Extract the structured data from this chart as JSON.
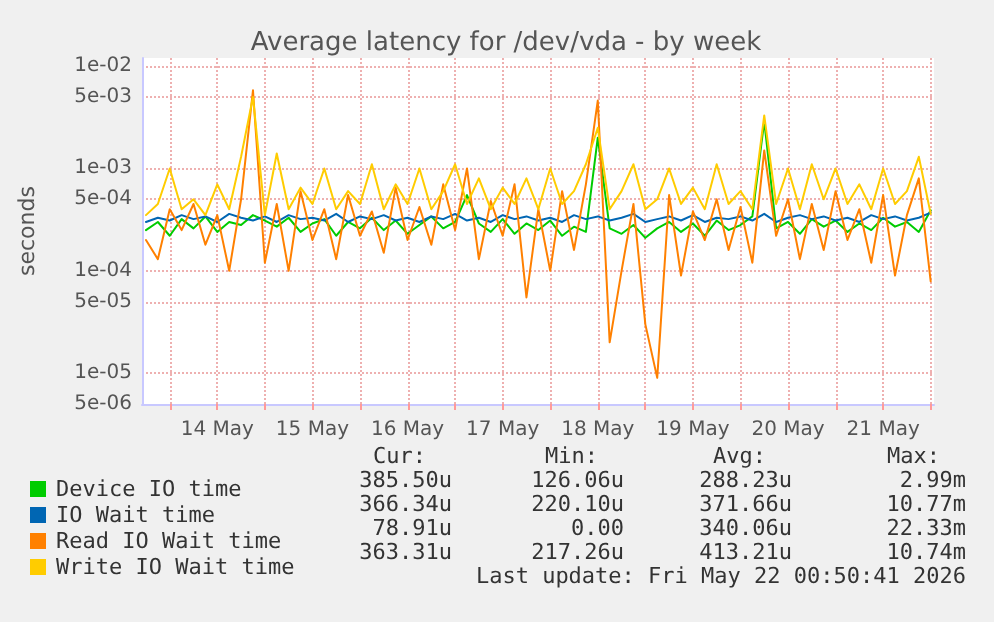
{
  "chart_data": {
    "type": "line",
    "title": "Average latency for /dev/vda - by week",
    "ylabel": "seconds",
    "log": "y",
    "grid": true,
    "legend": "bottom",
    "marker": "none",
    "line_style": "solid",
    "x": [
      "2026-05-13T18:00",
      "2026-05-13T21:00",
      "2026-05-14T00:00",
      "2026-05-14T03:00",
      "2026-05-14T06:00",
      "2026-05-14T09:00",
      "2026-05-14T12:00",
      "2026-05-14T15:00",
      "2026-05-14T18:00",
      "2026-05-14T21:00",
      "2026-05-15T00:00",
      "2026-05-15T03:00",
      "2026-05-15T06:00",
      "2026-05-15T09:00",
      "2026-05-15T12:00",
      "2026-05-15T15:00",
      "2026-05-15T18:00",
      "2026-05-15T21:00",
      "2026-05-16T00:00",
      "2026-05-16T03:00",
      "2026-05-16T06:00",
      "2026-05-16T09:00",
      "2026-05-16T12:00",
      "2026-05-16T15:00",
      "2026-05-16T18:00",
      "2026-05-16T21:00",
      "2026-05-17T00:00",
      "2026-05-17T03:00",
      "2026-05-17T06:00",
      "2026-05-17T09:00",
      "2026-05-17T12:00",
      "2026-05-17T15:00",
      "2026-05-17T18:00",
      "2026-05-17T21:00",
      "2026-05-18T00:00",
      "2026-05-18T03:00",
      "2026-05-18T06:00",
      "2026-05-18T09:00",
      "2026-05-18T12:00",
      "2026-05-18T15:00",
      "2026-05-18T18:00",
      "2026-05-18T21:00",
      "2026-05-19T00:00",
      "2026-05-19T03:00",
      "2026-05-19T06:00",
      "2026-05-19T09:00",
      "2026-05-19T12:00",
      "2026-05-19T15:00",
      "2026-05-19T18:00",
      "2026-05-19T21:00",
      "2026-05-20T00:00",
      "2026-05-20T03:00",
      "2026-05-20T06:00",
      "2026-05-20T09:00",
      "2026-05-20T12:00",
      "2026-05-20T15:00",
      "2026-05-20T18:00",
      "2026-05-20T21:00",
      "2026-05-21T00:00",
      "2026-05-21T03:00",
      "2026-05-21T06:00",
      "2026-05-21T09:00",
      "2026-05-21T12:00",
      "2026-05-21T15:00",
      "2026-05-21T18:00",
      "2026-05-21T21:00",
      "2026-05-22T00:00"
    ],
    "xlim": [
      "2026-05-13T17:00",
      "2026-05-22T00:50"
    ],
    "xticks": [
      {
        "value": "2026-05-14T00:00",
        "label": null
      },
      {
        "value": "2026-05-14T12:00",
        "label": "14 May"
      },
      {
        "value": "2026-05-15T00:00",
        "label": null
      },
      {
        "value": "2026-05-15T12:00",
        "label": "15 May"
      },
      {
        "value": "2026-05-16T00:00",
        "label": null
      },
      {
        "value": "2026-05-16T12:00",
        "label": "16 May"
      },
      {
        "value": "2026-05-17T00:00",
        "label": null
      },
      {
        "value": "2026-05-17T12:00",
        "label": "17 May"
      },
      {
        "value": "2026-05-18T00:00",
        "label": null
      },
      {
        "value": "2026-05-18T12:00",
        "label": "18 May"
      },
      {
        "value": "2026-05-19T00:00",
        "label": null
      },
      {
        "value": "2026-05-19T12:00",
        "label": "19 May"
      },
      {
        "value": "2026-05-20T00:00",
        "label": null
      },
      {
        "value": "2026-05-20T12:00",
        "label": "20 May"
      },
      {
        "value": "2026-05-21T00:00",
        "label": null
      },
      {
        "value": "2026-05-21T12:00",
        "label": "21 May"
      },
      {
        "value": "2026-05-22T00:00",
        "label": null
      }
    ],
    "ylim": [
      5e-06,
      0.012
    ],
    "yticks": [
      {
        "value": 5e-06,
        "label": "5e-06"
      },
      {
        "value": 1e-05,
        "label": "1e-05"
      },
      {
        "value": 5e-05,
        "label": "5e-05"
      },
      {
        "value": 0.0001,
        "label": "1e-04"
      },
      {
        "value": 0.0005,
        "label": "5e-04"
      },
      {
        "value": 0.001,
        "label": "1e-03"
      },
      {
        "value": 0.005,
        "label": "5e-03"
      },
      {
        "value": 0.01,
        "label": "1e-02"
      }
    ],
    "series": [
      {
        "name": "Device IO time",
        "color": "#00cc00",
        "values": [
          0.00025,
          0.0003,
          0.00022,
          0.00032,
          0.00026,
          0.00034,
          0.00024,
          0.0003,
          0.00028,
          0.00035,
          0.00031,
          0.00027,
          0.00033,
          0.00024,
          0.00029,
          0.00032,
          0.00022,
          0.0003,
          0.00026,
          0.00033,
          0.00025,
          0.00031,
          0.00023,
          0.00028,
          0.00034,
          0.00026,
          0.0003,
          0.00055,
          0.00029,
          0.00024,
          0.00032,
          0.00023,
          0.00029,
          0.00025,
          0.00031,
          0.00022,
          0.00027,
          0.00024,
          0.002,
          0.00026,
          0.00023,
          0.00028,
          0.00021,
          0.00026,
          0.0003,
          0.00024,
          0.00029,
          0.00022,
          0.00031,
          0.00025,
          0.00028,
          0.00034,
          0.0029,
          0.00026,
          0.0003,
          0.00023,
          0.00032,
          0.00027,
          0.00031,
          0.00024,
          0.00029,
          0.00025,
          0.00033,
          0.00027,
          0.0003,
          0.00024,
          0.00039
        ]
      },
      {
        "name": "IO Wait time",
        "color": "#0066b3",
        "values": [
          0.0003,
          0.00033,
          0.00031,
          0.00035,
          0.00032,
          0.00034,
          0.0003,
          0.00036,
          0.00033,
          0.00031,
          0.00034,
          0.0003,
          0.00035,
          0.00032,
          0.00033,
          0.00031,
          0.00036,
          0.0003,
          0.00034,
          0.00032,
          0.00035,
          0.00031,
          0.00033,
          0.0003,
          0.00034,
          0.00032,
          0.00036,
          0.00031,
          0.00033,
          0.0003,
          0.00035,
          0.00032,
          0.00034,
          0.00031,
          0.00033,
          0.0003,
          0.00035,
          0.00032,
          0.00034,
          0.00031,
          0.00033,
          0.00036,
          0.0003,
          0.00032,
          0.00034,
          0.00031,
          0.00035,
          0.0003,
          0.00033,
          0.00032,
          0.00034,
          0.00031,
          0.00036,
          0.0003,
          0.00033,
          0.00035,
          0.00032,
          0.00034,
          0.00031,
          0.00033,
          0.0003,
          0.00035,
          0.00032,
          0.00034,
          0.00031,
          0.00033,
          0.00037
        ]
      },
      {
        "name": "Read IO Wait time",
        "color": "#ff8000",
        "values": [
          0.0002,
          0.00013,
          0.0004,
          0.00025,
          0.00045,
          0.00018,
          0.00035,
          0.0001,
          0.0005,
          0.0058,
          0.00012,
          0.00045,
          0.0001,
          0.0006,
          0.0002,
          0.0004,
          0.00013,
          0.00055,
          0.00022,
          0.00038,
          0.00015,
          0.00065,
          0.0002,
          0.00042,
          0.00018,
          0.0007,
          0.00025,
          0.001,
          0.00013,
          0.00048,
          0.00022,
          0.0007,
          5.5e-05,
          0.0004,
          0.0001,
          0.0006,
          0.00016,
          0.0007,
          0.0046,
          2e-05,
          0.0001,
          0.00045,
          3e-05,
          9e-06,
          0.00055,
          9e-05,
          0.00038,
          0.0002,
          0.0005,
          0.00016,
          0.00042,
          0.00012,
          0.0015,
          0.00022,
          0.0005,
          0.00013,
          0.00045,
          0.00016,
          0.0006,
          0.0002,
          0.0004,
          0.00012,
          0.00055,
          9e-05,
          0.00035,
          0.0008,
          7.9e-05
        ]
      },
      {
        "name": "Write IO Wait time",
        "color": "#ffcc00",
        "values": [
          0.00035,
          0.00045,
          0.001,
          0.0004,
          0.0005,
          0.00035,
          0.0007,
          0.0004,
          0.0013,
          0.005,
          0.00035,
          0.0014,
          0.0004,
          0.00065,
          0.00045,
          0.001,
          0.0004,
          0.0006,
          0.00045,
          0.0011,
          0.0004,
          0.0007,
          0.00045,
          0.001,
          0.0004,
          0.0006,
          0.0011,
          0.00045,
          0.0008,
          0.0004,
          0.00065,
          0.00045,
          0.0008,
          0.0004,
          0.001,
          0.00045,
          0.0006,
          0.0011,
          0.0025,
          0.0004,
          0.0006,
          0.0011,
          0.0004,
          0.0005,
          0.001,
          0.00045,
          0.00065,
          0.0004,
          0.0011,
          0.00045,
          0.0006,
          0.0004,
          0.0033,
          0.00045,
          0.001,
          0.0004,
          0.0011,
          0.0005,
          0.001,
          0.00045,
          0.0007,
          0.0004,
          0.001,
          0.00045,
          0.0006,
          0.0013,
          0.00036
        ]
      }
    ],
    "annotations": [
      "Cur:",
      "Min:",
      "Avg:",
      "Max:",
      "385.50u",
      "126.06u",
      "288.23u",
      "2.99m",
      "366.34u",
      "220.10u",
      "371.66u",
      "10.77m",
      "78.91u",
      "0.00",
      "340.06u",
      "22.33m",
      "363.31u",
      "217.26u",
      "413.21u",
      "10.74m",
      "Last update: Fri May 22 00:50:41 2026"
    ]
  }
}
